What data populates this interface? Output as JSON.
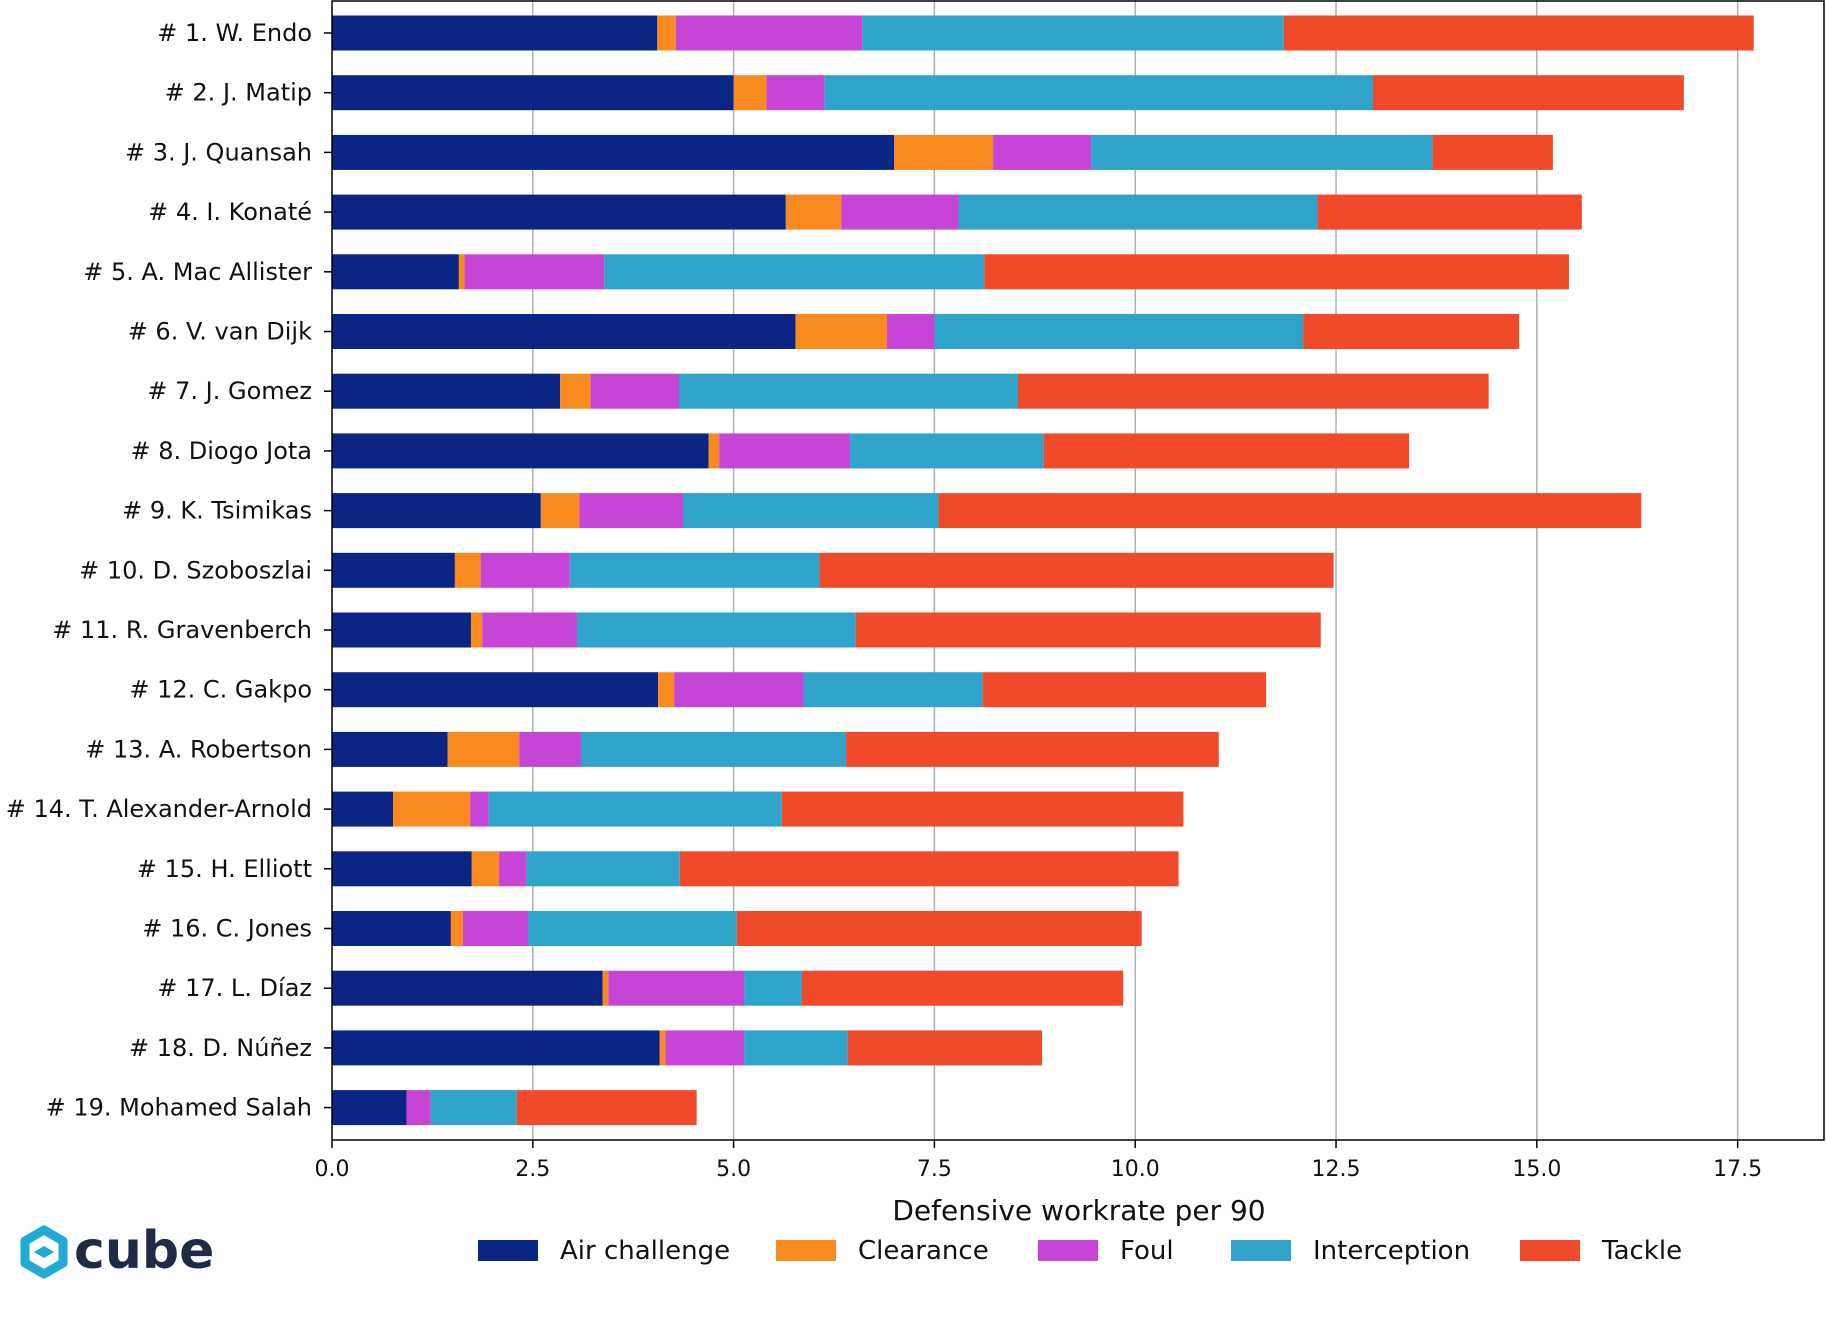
{
  "chart_data": {
    "type": "bar",
    "orientation": "horizontal",
    "stacked": true,
    "title": "",
    "xlabel": "Defensive workrate per 90",
    "ylabel": "",
    "xlim": [
      0,
      18.6
    ],
    "xticks": [
      0,
      2.5,
      5,
      7.5,
      10,
      12.5,
      15,
      17.5
    ],
    "xtick_labels": [
      "0.0",
      "2.5",
      "5.0",
      "7.5",
      "10.0",
      "12.5",
      "15.0",
      "17.5"
    ],
    "grid": "vertical",
    "legend_position": "bottom",
    "categories": [
      "# 1.  W. Endo",
      "# 2.  J. Matip",
      "# 3.  J. Quansah",
      "# 4.  I. Konaté",
      "# 5.  A. Mac Allister",
      "# 6.  V. van Dijk",
      "# 7.  J. Gomez",
      "# 8.  Diogo Jota",
      "# 9.  K. Tsimikas",
      "# 10.  D. Szoboszlai",
      "# 11.  R. Gravenberch",
      "# 12.  C. Gakpo",
      "# 13.  A. Robertson",
      "# 14.  T. Alexander-Arnold",
      "# 15.  H. Elliott",
      "# 16.  C. Jones",
      "# 17.  L. Díaz",
      "# 18.  D. Núñez",
      "# 19.  Mohamed Salah"
    ],
    "series": [
      {
        "name": "Air challenge",
        "color": "#0b2585",
        "values": [
          4.05,
          5.0,
          7.0,
          5.65,
          1.58,
          5.77,
          2.84,
          4.69,
          2.6,
          1.53,
          1.73,
          4.06,
          1.44,
          0.76,
          1.74,
          1.48,
          3.37,
          4.08,
          0.93
        ]
      },
      {
        "name": "Clearance",
        "color": "#f98a1f",
        "values": [
          0.23,
          0.41,
          1.23,
          0.69,
          0.07,
          1.14,
          0.38,
          0.13,
          0.48,
          0.32,
          0.14,
          0.2,
          0.89,
          0.96,
          0.34,
          0.15,
          0.07,
          0.07,
          0.0
        ]
      },
      {
        "name": "Foul",
        "color": "#c645d6",
        "values": [
          2.32,
          0.72,
          1.22,
          1.46,
          1.74,
          0.59,
          1.1,
          1.63,
          1.29,
          1.11,
          1.18,
          1.61,
          0.77,
          0.23,
          0.34,
          0.81,
          1.69,
          0.98,
          0.3
        ]
      },
      {
        "name": "Interception",
        "color": "#2fa3c9",
        "values": [
          5.25,
          6.83,
          4.25,
          4.47,
          4.73,
          4.59,
          4.22,
          2.41,
          3.18,
          3.11,
          3.47,
          2.23,
          3.3,
          3.65,
          1.91,
          2.6,
          0.72,
          1.29,
          1.07
        ]
      },
      {
        "name": "Tackle",
        "color": "#f04a2b",
        "values": [
          5.85,
          3.87,
          1.5,
          3.29,
          7.28,
          2.69,
          5.86,
          4.55,
          8.75,
          6.4,
          5.79,
          3.53,
          4.64,
          5.0,
          6.21,
          5.04,
          4.0,
          2.42,
          2.24
        ]
      }
    ]
  },
  "brand": {
    "logo_text": "cube",
    "accent": "#23a9d6"
  }
}
